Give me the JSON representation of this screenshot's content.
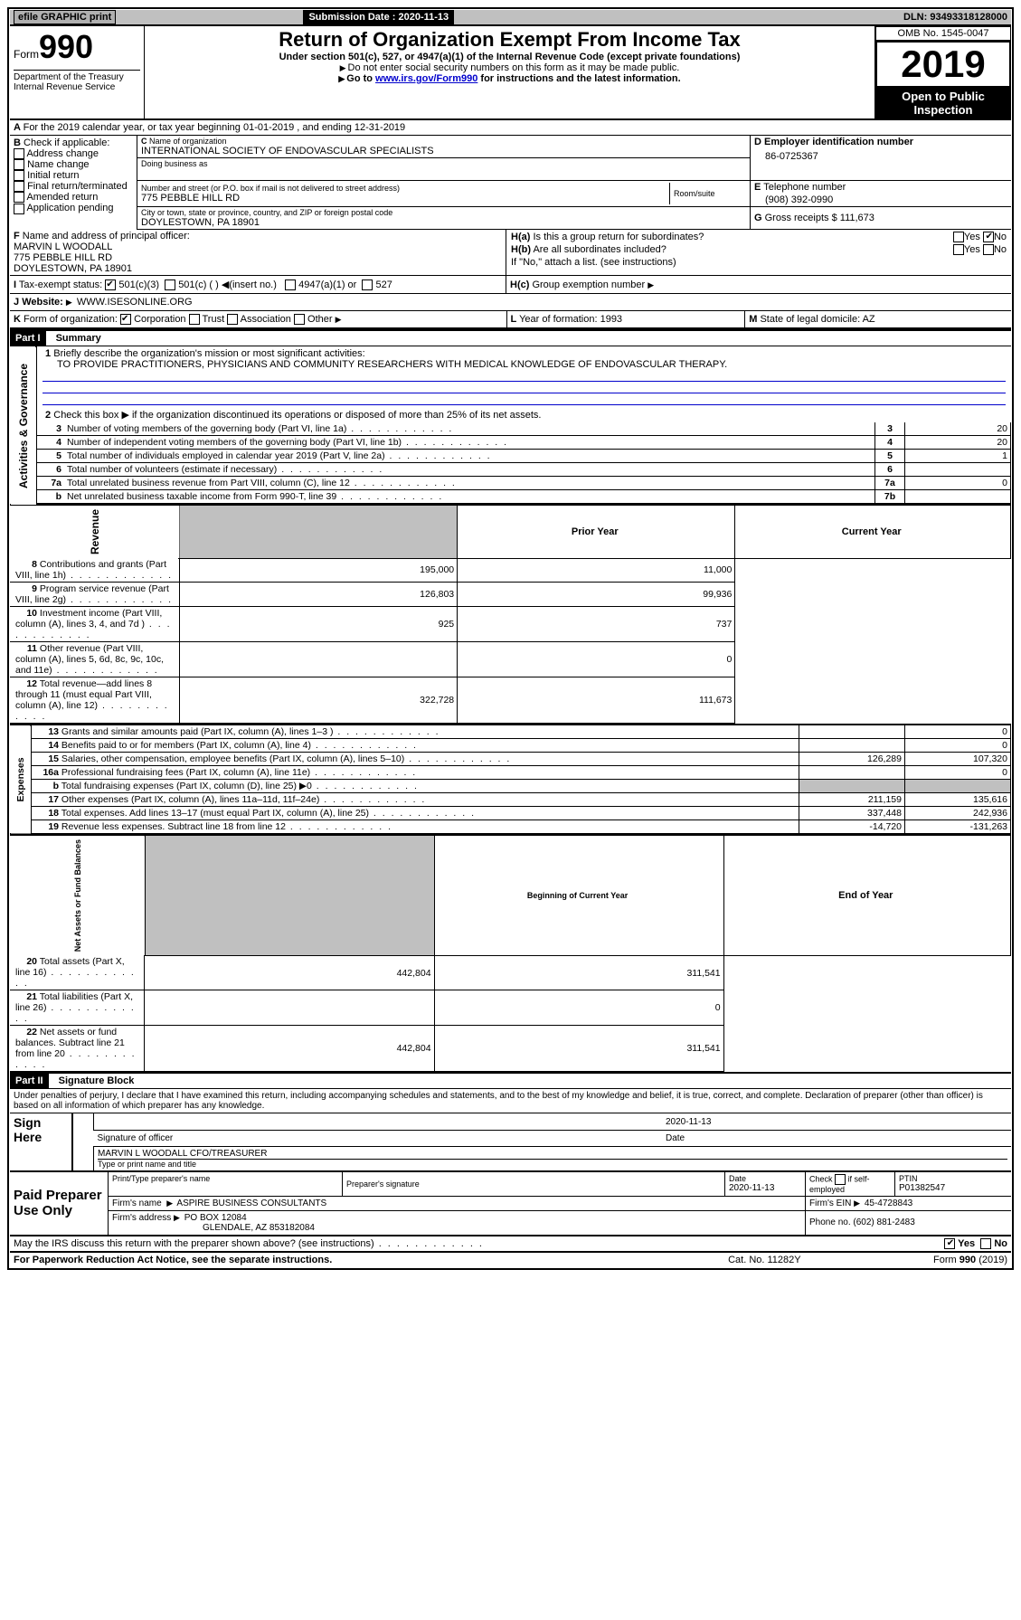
{
  "topbar": {
    "efile": "efile GRAPHIC print",
    "sub_label": "Submission Date :",
    "sub_date": "2020-11-13",
    "dln_label": "DLN:",
    "dln": "93493318128000"
  },
  "hdr": {
    "form": "990",
    "formword": "Form",
    "title": "Return of Organization Exempt From Income Tax",
    "sub1": "Under section 501(c), 527, or 4947(a)(1) of the Internal Revenue Code (except private foundations)",
    "sub2": "Do not enter social security numbers on this form as it may be made public.",
    "sub3a": "Go to ",
    "sub3link": "www.irs.gov/Form990",
    "sub3b": " for instructions and the latest information.",
    "dept": "Department of the Treasury\nInternal Revenue Service",
    "omb": "OMB No. 1545-0047",
    "year": "2019",
    "open": "Open to Public Inspection"
  },
  "rowA": {
    "text": "For the 2019 calendar year, or tax year beginning 01-01-2019   , and ending 12-31-2019"
  },
  "secB": {
    "hdr": "Check if applicable:",
    "items": [
      "Address change",
      "Name change",
      "Initial return",
      "Final return/terminated",
      "Amended return",
      "Application pending"
    ]
  },
  "secC": {
    "name_lbl": "Name of organization",
    "name": "INTERNATIONAL SOCIETY OF ENDOVASCULAR SPECIALISTS",
    "dba_lbl": "Doing business as",
    "addr_lbl": "Number and street (or P.O. box if mail is not delivered to street address)",
    "room_lbl": "Room/suite",
    "addr": "775 PEBBLE HILL RD",
    "city_lbl": "City or town, state or province, country, and ZIP or foreign postal code",
    "city": "DOYLESTOWN, PA  18901"
  },
  "secD": {
    "lbl": "Employer identification number",
    "val": "86-0725367"
  },
  "secE": {
    "lbl": "Telephone number",
    "val": "(908) 392-0990"
  },
  "secG": {
    "lbl": "Gross receipts $",
    "val": "111,673"
  },
  "secF": {
    "lbl": "Name and address of principal officer:",
    "name": "MARVIN L WOODALL",
    "addr": "775 PEBBLE HILL RD",
    "city": "DOYLESTOWN, PA  18901"
  },
  "secH": {
    "a": "Is this a group return for subordinates?",
    "b": "Are all subordinates included?",
    "bnote": "If \"No,\" attach a list. (see instructions)",
    "c": "Group exemption number"
  },
  "secI": {
    "lbl": "Tax-exempt status:",
    "o1": "501(c)(3)",
    "o2": "501(c) (  )",
    "o2b": "(insert no.)",
    "o3": "4947(a)(1) or",
    "o4": "527"
  },
  "secJ": {
    "lbl": "Website:",
    "val": "WWW.ISESONLINE.ORG"
  },
  "secK": {
    "lbl": "Form of organization:",
    "o1": "Corporation",
    "o2": "Trust",
    "o3": "Association",
    "o4": "Other"
  },
  "secL": {
    "lbl": "Year of formation:",
    "val": "1993"
  },
  "secM": {
    "lbl": "State of legal domicile:",
    "val": "AZ"
  },
  "part1": {
    "hdr": "Part I",
    "title": "Summary",
    "l1lbl": "Briefly describe the organization's mission or most significant activities:",
    "l1": "TO PROVIDE PRACTITIONERS, PHYSICIANS AND COMMUNITY RESEARCHERS WITH MEDICAL KNOWLEDGE OF ENDOVASCULAR THERAPY.",
    "l2": "Check this box ▶     if the organization discontinued its operations or disposed of more than 25% of its net assets.",
    "rows_a": [
      {
        "n": "3",
        "t": "Number of voting members of the governing body (Part VI, line 1a)",
        "i": "3",
        "v": "20"
      },
      {
        "n": "4",
        "t": "Number of independent voting members of the governing body (Part VI, line 1b)",
        "i": "4",
        "v": "20"
      },
      {
        "n": "5",
        "t": "Total number of individuals employed in calendar year 2019 (Part V, line 2a)",
        "i": "5",
        "v": "1"
      },
      {
        "n": "6",
        "t": "Total number of volunteers (estimate if necessary)",
        "i": "6",
        "v": ""
      },
      {
        "n": "7a",
        "t": "Total unrelated business revenue from Part VIII, column (C), line 12",
        "i": "7a",
        "v": "0"
      },
      {
        "n": "b",
        "t": "Net unrelated business taxable income from Form 990-T, line 39",
        "i": "7b",
        "v": ""
      }
    ],
    "col_hdr_prior": "Prior Year",
    "col_hdr_cur": "Current Year",
    "rows_r": [
      {
        "n": "8",
        "t": "Contributions and grants (Part VIII, line 1h)",
        "p": "195,000",
        "c": "11,000"
      },
      {
        "n": "9",
        "t": "Program service revenue (Part VIII, line 2g)",
        "p": "126,803",
        "c": "99,936"
      },
      {
        "n": "10",
        "t": "Investment income (Part VIII, column (A), lines 3, 4, and 7d )",
        "p": "925",
        "c": "737"
      },
      {
        "n": "11",
        "t": "Other revenue (Part VIII, column (A), lines 5, 6d, 8c, 9c, 10c, and 11e)",
        "p": "",
        "c": "0"
      },
      {
        "n": "12",
        "t": "Total revenue—add lines 8 through 11 (must equal Part VIII, column (A), line 12)",
        "p": "322,728",
        "c": "111,673"
      }
    ],
    "rows_e": [
      {
        "n": "13",
        "t": "Grants and similar amounts paid (Part IX, column (A), lines 1–3 )",
        "p": "",
        "c": "0"
      },
      {
        "n": "14",
        "t": "Benefits paid to or for members (Part IX, column (A), line 4)",
        "p": "",
        "c": "0"
      },
      {
        "n": "15",
        "t": "Salaries, other compensation, employee benefits (Part IX, column (A), lines 5–10)",
        "p": "126,289",
        "c": "107,320"
      },
      {
        "n": "16a",
        "t": "Professional fundraising fees (Part IX, column (A), line 11e)",
        "p": "",
        "c": "0"
      },
      {
        "n": "b",
        "t": "Total fundraising expenses (Part IX, column (D), line 25) ▶0",
        "p": "SHADE",
        "c": "SHADE"
      },
      {
        "n": "17",
        "t": "Other expenses (Part IX, column (A), lines 11a–11d, 11f–24e)",
        "p": "211,159",
        "c": "135,616"
      },
      {
        "n": "18",
        "t": "Total expenses. Add lines 13–17 (must equal Part IX, column (A), line 25)",
        "p": "337,448",
        "c": "242,936"
      },
      {
        "n": "19",
        "t": "Revenue less expenses. Subtract line 18 from line 12",
        "p": "-14,720",
        "c": "-131,263"
      }
    ],
    "col_hdr_beg": "Beginning of Current Year",
    "col_hdr_end": "End of Year",
    "rows_n": [
      {
        "n": "20",
        "t": "Total assets (Part X, line 16)",
        "p": "442,804",
        "c": "311,541"
      },
      {
        "n": "21",
        "t": "Total liabilities (Part X, line 26)",
        "p": "",
        "c": "0"
      },
      {
        "n": "22",
        "t": "Net assets or fund balances. Subtract line 21 from line 20",
        "p": "442,804",
        "c": "311,541"
      }
    ],
    "side_a": "Activities & Governance",
    "side_r": "Revenue",
    "side_e": "Expenses",
    "side_n": "Net Assets or Fund Balances"
  },
  "part2": {
    "hdr": "Part II",
    "title": "Signature Block",
    "decl": "Under penalties of perjury, I declare that I have examined this return, including accompanying schedules and statements, and to the best of my knowledge and belief, it is true, correct, and complete. Declaration of preparer (other than officer) is based on all information of which preparer has any knowledge.",
    "sign_here": "Sign Here",
    "sig_off": "Signature of officer",
    "date_lbl": "Date",
    "date": "2020-11-13",
    "name_title": "MARVIN L WOODALL CFO/TREASURER",
    "name_title_lbl": "Type or print name and title",
    "paid": "Paid Preparer Use Only",
    "p_name_lbl": "Print/Type preparer's name",
    "p_sig_lbl": "Preparer's signature",
    "p_date_lbl": "Date",
    "p_date": "2020-11-13",
    "p_chk": "Check       if self-employed",
    "ptin_lbl": "PTIN",
    "ptin": "P01382547",
    "firm_lbl": "Firm's name",
    "firm": "ASPIRE BUSINESS CONSULTANTS",
    "ein_lbl": "Firm's EIN",
    "ein": "45-4728843",
    "addr_lbl": "Firm's address",
    "addr1": "PO BOX 12084",
    "addr2": "GLENDALE, AZ  853182084",
    "phone_lbl": "Phone no.",
    "phone": "(602) 881-2483",
    "may": "May the IRS discuss this return with the preparer shown above? (see instructions)",
    "foot_l": "For Paperwork Reduction Act Notice, see the separate instructions.",
    "foot_c": "Cat. No. 11282Y",
    "foot_r": "Form 990 (2019)"
  },
  "yn": {
    "yes": "Yes",
    "no": "No"
  }
}
